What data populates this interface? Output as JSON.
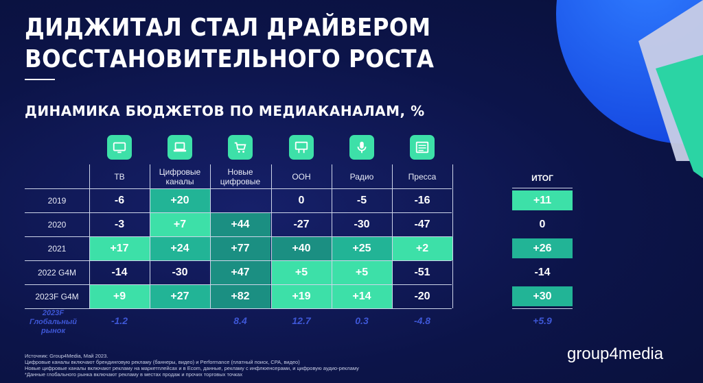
{
  "title_lines": [
    "ДИДЖИТАЛ СТАЛ ДРАЙВЕРОМ",
    "ВОССТАНОВИТЕЛЬНОГО РОСТА"
  ],
  "logo": "group4media",
  "colors": {
    "background": "#0b1342",
    "accent_bright": "#3de0a8",
    "accent_mid": "#22b496",
    "accent_dark": "#1b8f82",
    "global_text": "#3e57d6"
  },
  "chart_data": {
    "type": "table",
    "title": "ДИНАМИКА БЮДЖЕТОВ ПО МЕДИАКАНАЛАМ, %",
    "columns": [
      {
        "label": "ТВ",
        "icon": "tv-icon"
      },
      {
        "label": "Цифровые каналы",
        "icon": "laptop-icon"
      },
      {
        "label": "Новые цифровые",
        "icon": "shopping-cart-icon"
      },
      {
        "label": "OOH",
        "icon": "billboard-icon"
      },
      {
        "label": "Радио",
        "icon": "microphone-icon"
      },
      {
        "label": "Пресса",
        "icon": "newspaper-icon"
      }
    ],
    "total_label": "ИТОГ",
    "rows": [
      {
        "label": "2019",
        "values": [
          "-6",
          "+20",
          "",
          "0",
          "-5",
          "-16"
        ],
        "total": "+11"
      },
      {
        "label": "2020",
        "values": [
          "-3",
          "+7",
          "+44",
          "-27",
          "-30",
          "-47"
        ],
        "total": "0"
      },
      {
        "label": "2021",
        "values": [
          "+17",
          "+24",
          "+77",
          "+40",
          "+25",
          "+2"
        ],
        "total": "+26"
      },
      {
        "label": "2022 G4M",
        "values": [
          "-14",
          "-30",
          "+47",
          "+5",
          "+5",
          "-51"
        ],
        "total": "-14"
      },
      {
        "label": "2023F G4M",
        "values": [
          "+9",
          "+27",
          "+82",
          "+19",
          "+14",
          "-20"
        ],
        "total": "+30"
      }
    ],
    "global_market": {
      "label_lines": [
        "2023F",
        "Глобальный",
        "рынок"
      ],
      "values": [
        "-1.2",
        "8.4",
        "12.7",
        "0.3",
        "-4.8"
      ],
      "total": "+5.9"
    }
  },
  "sources": [
    "Источник: Group4Media, Май 2023.",
    "Цифровые каналы включают брендинговую рекламу (баннеры, видео) и Performance (платный поиск, CPA, видео)",
    "Новые цифровые каналы включают рекламу на маркетплейсах и в Ecom, данные, рекламу с инфлюенсерами, и цифровую аудио-рекламу",
    "*Данные глобального рынка включают рекламу в местах продаж и прочих торговых точках"
  ]
}
